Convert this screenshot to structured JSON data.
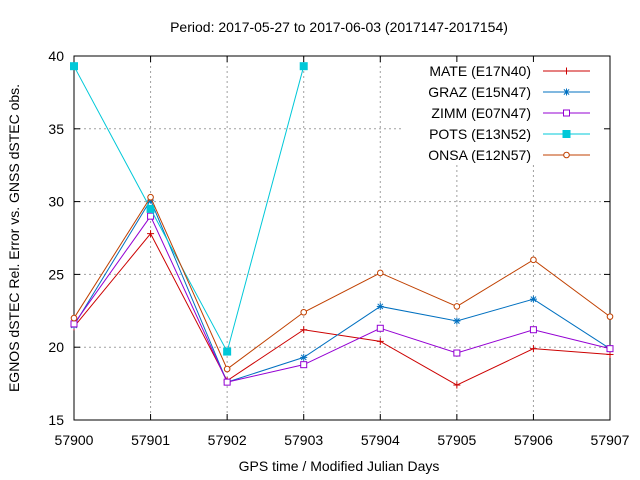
{
  "chart_data": {
    "type": "line",
    "title": "Period: 2017-05-27 to 2017-06-03 (2017147-2017154)",
    "xlabel": "GPS time / Modified Julian Days",
    "ylabel": "EGNOS dSTEC Rel. Error vs. GNSS dSTEC obs.",
    "xlim": [
      57900,
      57907
    ],
    "ylim": [
      15,
      40
    ],
    "xticks": [
      57900,
      57901,
      57902,
      57903,
      57904,
      57905,
      57906,
      57907
    ],
    "yticks": [
      15,
      20,
      25,
      30,
      35,
      40
    ],
    "grid": true,
    "legend_position": "top-right",
    "series": [
      {
        "name": "MATE (E17N40)",
        "color": "#cc0000",
        "marker": "plus",
        "x": [
          57900,
          57901,
          57902,
          57903,
          57904,
          57905,
          57906,
          57907
        ],
        "values": [
          21.4,
          27.8,
          17.7,
          21.2,
          20.4,
          17.4,
          19.9,
          19.5
        ]
      },
      {
        "name": "GRAZ (E15N47)",
        "color": "#0070c0",
        "marker": "star",
        "x": [
          57900,
          57901,
          57902,
          57903,
          57904,
          57905,
          57906,
          57907
        ],
        "values": [
          21.5,
          30.1,
          17.6,
          19.3,
          22.8,
          21.8,
          23.3,
          19.9
        ]
      },
      {
        "name": "ZIMM (E07N47)",
        "color": "#9400d3",
        "marker": "square-open",
        "x": [
          57900,
          57901,
          57902,
          57903,
          57904,
          57905,
          57906,
          57907
        ],
        "values": [
          21.6,
          29.0,
          17.6,
          18.8,
          21.3,
          19.6,
          21.2,
          19.9
        ]
      },
      {
        "name": "POTS (E13N52)",
        "color": "#00c8d8",
        "marker": "square-filled",
        "x": [
          57900,
          57901,
          57902,
          57903
        ],
        "values": [
          39.3,
          29.5,
          19.7,
          39.3
        ]
      },
      {
        "name": "ONSA (E12N57)",
        "color": "#c04000",
        "marker": "circle-open",
        "x": [
          57900,
          57901,
          57902,
          57903,
          57904,
          57905,
          57906,
          57907
        ],
        "values": [
          22.0,
          30.3,
          18.5,
          22.4,
          25.1,
          22.8,
          26.0,
          22.1
        ]
      }
    ]
  }
}
